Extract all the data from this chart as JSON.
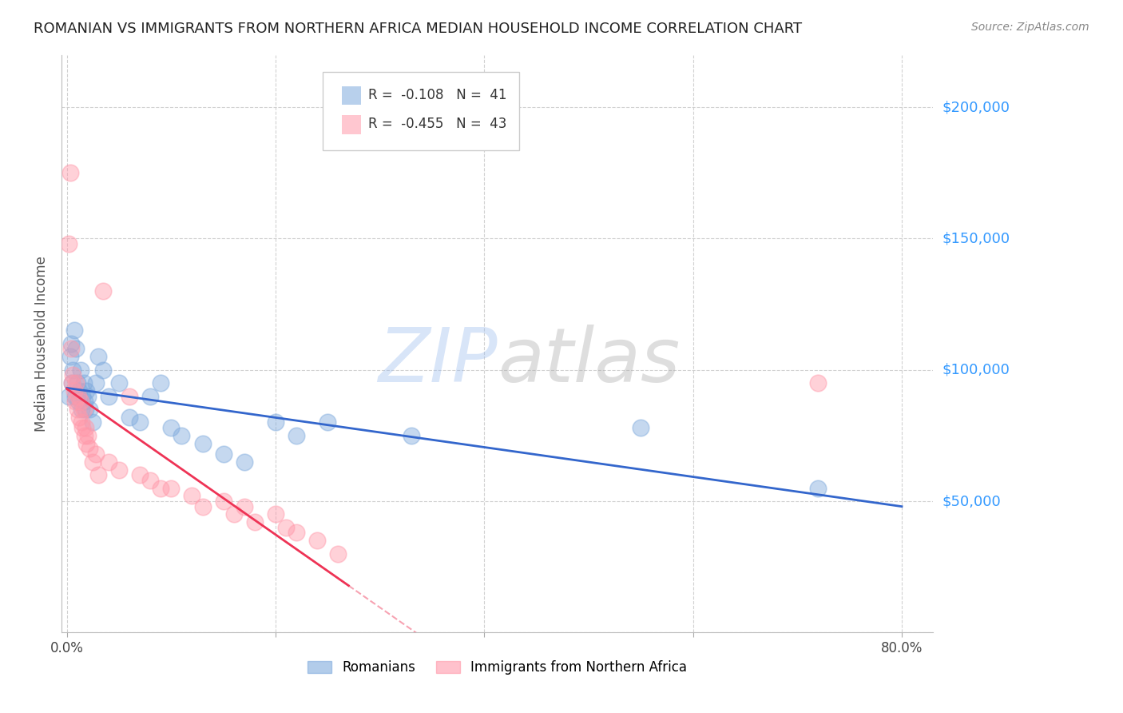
{
  "title": "ROMANIAN VS IMMIGRANTS FROM NORTHERN AFRICA MEDIAN HOUSEHOLD INCOME CORRELATION CHART",
  "source": "Source: ZipAtlas.com",
  "ylabel": "Median Household Income",
  "xlim": [
    0.0,
    0.82
  ],
  "ylim": [
    0,
    220000
  ],
  "yticks": [
    0,
    50000,
    100000,
    150000,
    200000
  ],
  "ytick_labels": [
    "",
    "$50,000",
    "$100,000",
    "$150,000",
    "$200,000"
  ],
  "xticks": [
    0.0,
    0.2,
    0.4,
    0.6,
    0.8
  ],
  "xtick_labels": [
    "0.0%",
    "",
    "",
    "",
    "80.0%"
  ],
  "bg_color": "#ffffff",
  "grid_color": "#cccccc",
  "blue_color": "#7faadd",
  "pink_color": "#ff99aa",
  "blue_line_color": "#3366cc",
  "pink_line_color": "#ee3355",
  "watermark": "ZIPatlas",
  "watermark_blue": "ZIP",
  "watermark_gray": "atlas",
  "watermark_color_blue": "#99bbdd",
  "watermark_color_gray": "#bbbbbb",
  "legend_label_blue": "Romanians",
  "legend_label_pink": "Immigrants from Northern Africa",
  "blue_R": -0.108,
  "blue_N": 41,
  "pink_R": -0.455,
  "pink_N": 43,
  "blue_scatter_x": [
    0.002,
    0.003,
    0.004,
    0.005,
    0.006,
    0.007,
    0.008,
    0.009,
    0.01,
    0.011,
    0.012,
    0.013,
    0.014,
    0.015,
    0.016,
    0.017,
    0.018,
    0.019,
    0.02,
    0.022,
    0.025,
    0.028,
    0.03,
    0.035,
    0.04,
    0.05,
    0.06,
    0.07,
    0.08,
    0.09,
    0.1,
    0.11,
    0.13,
    0.15,
    0.17,
    0.2,
    0.22,
    0.25,
    0.33,
    0.55,
    0.72
  ],
  "blue_scatter_y": [
    90000,
    105000,
    110000,
    95000,
    100000,
    115000,
    90000,
    108000,
    95000,
    88000,
    92000,
    100000,
    85000,
    90000,
    95000,
    88000,
    85000,
    92000,
    90000,
    85000,
    80000,
    95000,
    105000,
    100000,
    90000,
    95000,
    82000,
    80000,
    90000,
    95000,
    78000,
    75000,
    72000,
    68000,
    65000,
    80000,
    75000,
    80000,
    75000,
    78000,
    55000
  ],
  "pink_scatter_x": [
    0.002,
    0.003,
    0.004,
    0.005,
    0.006,
    0.007,
    0.008,
    0.009,
    0.01,
    0.011,
    0.012,
    0.013,
    0.014,
    0.015,
    0.016,
    0.017,
    0.018,
    0.019,
    0.02,
    0.022,
    0.025,
    0.028,
    0.03,
    0.035,
    0.04,
    0.05,
    0.06,
    0.07,
    0.08,
    0.09,
    0.1,
    0.12,
    0.13,
    0.15,
    0.16,
    0.17,
    0.18,
    0.2,
    0.21,
    0.22,
    0.24,
    0.26,
    0.72
  ],
  "pink_scatter_y": [
    148000,
    175000,
    108000,
    95000,
    98000,
    92000,
    88000,
    95000,
    85000,
    90000,
    82000,
    88000,
    80000,
    78000,
    85000,
    75000,
    78000,
    72000,
    75000,
    70000,
    65000,
    68000,
    60000,
    130000,
    65000,
    62000,
    90000,
    60000,
    58000,
    55000,
    55000,
    52000,
    48000,
    50000,
    45000,
    48000,
    42000,
    45000,
    40000,
    38000,
    35000,
    30000,
    95000
  ]
}
